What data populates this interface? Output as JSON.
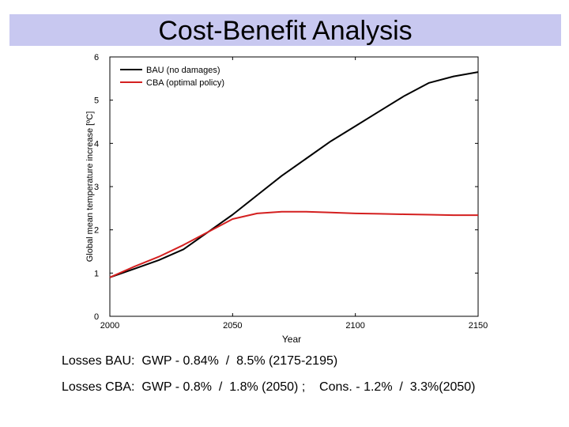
{
  "header": {
    "title": "Cost-Benefit Analysis"
  },
  "captions": {
    "losses_bau": "Losses BAU:  GWP - 0.84%  /  8.5% (2175-2195)",
    "losses_cba": "Losses CBA:  GWP - 0.8%  /  1.8% (2050) ;    Cons. - 1.2%  /  3.3%(2050)"
  },
  "colors": {
    "title_band": "#c8c8f0",
    "bau": "#000000",
    "cba": "#d42020"
  },
  "chart_data": {
    "type": "line",
    "xlabel": "Year",
    "ylabel": "Global mean temperature increase [ºC]",
    "xlim": [
      2000,
      2150
    ],
    "ylim": [
      0,
      6
    ],
    "xticks": [
      "2000",
      "2050",
      "2100",
      "2150"
    ],
    "yticks": [
      "0",
      "1",
      "2",
      "3",
      "4",
      "5",
      "6"
    ],
    "grid": false,
    "legend_position": "top-left",
    "series": [
      {
        "name": "BAU (no damages)",
        "color": "#000000",
        "x": [
          2000,
          2010,
          2020,
          2030,
          2040,
          2050,
          2060,
          2070,
          2080,
          2090,
          2100,
          2110,
          2120,
          2130,
          2140,
          2150
        ],
        "y": [
          0.9,
          1.1,
          1.3,
          1.55,
          1.95,
          2.35,
          2.8,
          3.25,
          3.65,
          4.05,
          4.4,
          4.75,
          5.1,
          5.4,
          5.55,
          5.65
        ]
      },
      {
        "name": "CBA (optimal policy)",
        "color": "#d42020",
        "x": [
          2000,
          2010,
          2020,
          2030,
          2040,
          2050,
          2060,
          2070,
          2080,
          2090,
          2100,
          2110,
          2120,
          2130,
          2140,
          2150
        ],
        "y": [
          0.9,
          1.15,
          1.38,
          1.65,
          1.95,
          2.25,
          2.38,
          2.42,
          2.42,
          2.4,
          2.38,
          2.37,
          2.36,
          2.35,
          2.34,
          2.34
        ]
      }
    ]
  }
}
